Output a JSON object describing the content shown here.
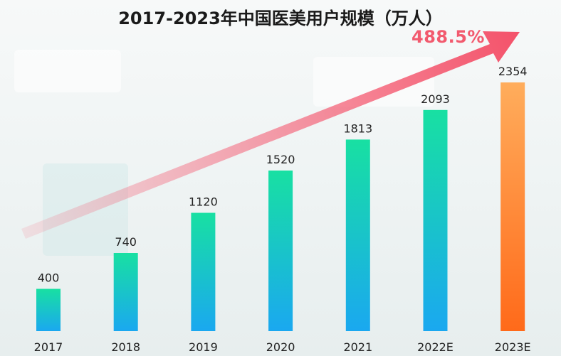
{
  "chart_data": {
    "type": "bar",
    "title": "2017-2023年中国医美用户规模（万人）",
    "categories": [
      "2017",
      "2018",
      "2019",
      "2020",
      "2021",
      "2022E",
      "2023E"
    ],
    "values": [
      400,
      740,
      1120,
      1520,
      1813,
      2093,
      2354
    ],
    "data_labels": [
      "400",
      "740",
      "1120",
      "1520",
      "1813",
      "2093",
      "2354"
    ],
    "ylim": [
      0,
      2500
    ],
    "grid": false,
    "legend": "none",
    "annotation": {
      "label": "488.5%",
      "color": "#f25a6e"
    },
    "colors": {
      "bar_top": "#18e0a2",
      "bar_bottom": "#1aa8f0",
      "highlight_top": "#ffad5c",
      "highlight_bottom": "#ff6a1a",
      "arrow": "#f4526a"
    },
    "highlight_index": 6
  }
}
